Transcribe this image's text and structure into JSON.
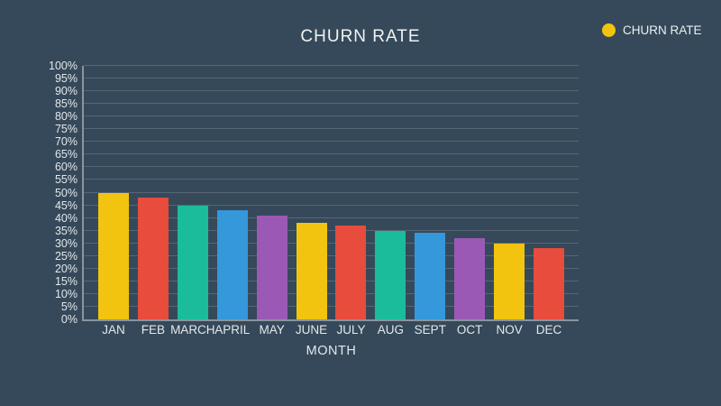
{
  "page": {
    "background": "#36495a",
    "text_color": "#ecf0f1"
  },
  "header": {
    "title": "CHURN RATE"
  },
  "legend": {
    "label": "CHURN RATE",
    "marker_color": "#f2c40f",
    "marker_shape": "circle"
  },
  "chart_data": {
    "type": "bar",
    "title": "CHURN RATE",
    "categories": [
      "JAN",
      "FEB",
      "MARCH",
      "APRIL",
      "MAY",
      "JUNE",
      "JULY",
      "AUG",
      "SEPT",
      "OCT",
      "NOV",
      "DEC"
    ],
    "values": [
      50,
      48,
      45,
      43,
      41,
      38,
      37,
      35,
      34,
      32,
      30,
      28
    ],
    "unit": "%",
    "xlabel": "MONTH",
    "ylabel": "",
    "ylim": [
      0,
      100
    ],
    "y_tick_step": 5,
    "y_tick_labels": [
      "0%",
      "5%",
      "10%",
      "15%",
      "20%",
      "25%",
      "30%",
      "35%",
      "40%",
      "45%",
      "50%",
      "55%",
      "60%",
      "65%",
      "70%",
      "75%",
      "80%",
      "85%",
      "90%",
      "95%",
      "100%"
    ],
    "grid": "horizontal-on",
    "legend_position": "top-right",
    "bar_colors": [
      "#f2c40f",
      "#e74c3c",
      "#1abc9c",
      "#3498db",
      "#9b59b6"
    ]
  }
}
